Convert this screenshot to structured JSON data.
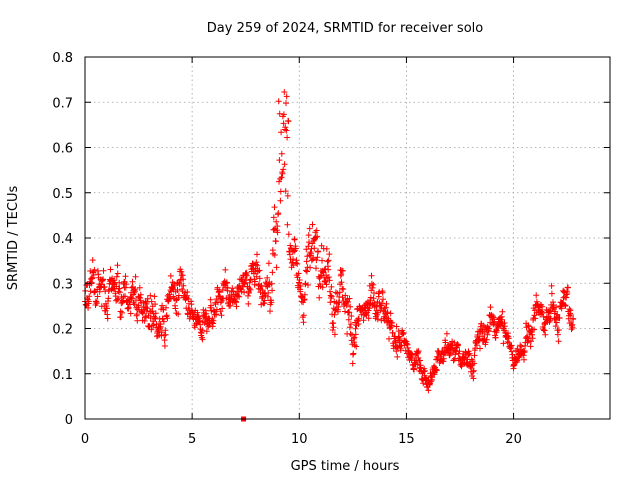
{
  "chart_data": {
    "type": "scatter",
    "title": "Day 259 of 2024, SRMTID for receiver solo",
    "xlabel": "GPS time / hours",
    "ylabel": "SRMTID / TECUs",
    "xlim": [
      0,
      24.5
    ],
    "ylim": [
      0,
      0.8
    ],
    "xticks": [
      0,
      5,
      10,
      15,
      20
    ],
    "yticks": [
      0,
      0.1,
      0.2,
      0.3,
      0.4,
      0.5,
      0.6,
      0.7,
      0.8
    ],
    "xtick_labels": [
      "0",
      "5",
      "10",
      "15",
      "20"
    ],
    "ytick_labels": [
      "0",
      "0.1",
      "0.2",
      "0.3",
      "0.4",
      "0.5",
      "0.6",
      "0.7",
      "0.8"
    ],
    "grid": true,
    "marker": "plus",
    "color": "#ff0000",
    "series_note": "approximate trend of dense point cloud, sampled every 0.25 h with per-point spread",
    "trend": [
      [
        0.0,
        0.27,
        0.06
      ],
      [
        0.5,
        0.3,
        0.08
      ],
      [
        1.0,
        0.27,
        0.06
      ],
      [
        1.5,
        0.28,
        0.07
      ],
      [
        2.0,
        0.27,
        0.06
      ],
      [
        2.5,
        0.26,
        0.07
      ],
      [
        3.0,
        0.25,
        0.07
      ],
      [
        3.5,
        0.22,
        0.08
      ],
      [
        4.0,
        0.27,
        0.09
      ],
      [
        4.5,
        0.25,
        0.07
      ],
      [
        5.0,
        0.22,
        0.05
      ],
      [
        5.5,
        0.21,
        0.05
      ],
      [
        6.0,
        0.24,
        0.05
      ],
      [
        6.5,
        0.27,
        0.06
      ],
      [
        7.0,
        0.28,
        0.05
      ],
      [
        7.5,
        0.32,
        0.05
      ],
      [
        8.0,
        0.35,
        0.06
      ],
      [
        8.5,
        0.28,
        0.06
      ],
      [
        9.0,
        0.4,
        0.12
      ],
      [
        9.25,
        0.6,
        0.1
      ],
      [
        9.5,
        0.45,
        0.1
      ],
      [
        10.0,
        0.25,
        0.07
      ],
      [
        10.5,
        0.35,
        0.1
      ],
      [
        11.0,
        0.4,
        0.1
      ],
      [
        11.5,
        0.25,
        0.08
      ],
      [
        12.0,
        0.3,
        0.1
      ],
      [
        12.5,
        0.22,
        0.07
      ],
      [
        13.0,
        0.25,
        0.06
      ],
      [
        13.5,
        0.24,
        0.06
      ],
      [
        14.0,
        0.22,
        0.06
      ],
      [
        14.5,
        0.18,
        0.05
      ],
      [
        15.0,
        0.15,
        0.04
      ],
      [
        15.5,
        0.13,
        0.04
      ],
      [
        16.0,
        0.08,
        0.03
      ],
      [
        16.5,
        0.12,
        0.04
      ],
      [
        17.0,
        0.17,
        0.05
      ],
      [
        17.5,
        0.14,
        0.04
      ],
      [
        18.0,
        0.12,
        0.04
      ],
      [
        18.5,
        0.18,
        0.05
      ],
      [
        19.0,
        0.22,
        0.04
      ],
      [
        19.5,
        0.2,
        0.04
      ],
      [
        20.0,
        0.13,
        0.03
      ],
      [
        20.5,
        0.18,
        0.05
      ],
      [
        21.0,
        0.22,
        0.05
      ],
      [
        21.5,
        0.21,
        0.05
      ],
      [
        22.0,
        0.24,
        0.05
      ],
      [
        22.5,
        0.26,
        0.05
      ],
      [
        22.75,
        0.2,
        0.06
      ]
    ],
    "outliers": [
      [
        7.4,
        0.0
      ]
    ],
    "x_end": 22.8,
    "point_count": 1400
  }
}
